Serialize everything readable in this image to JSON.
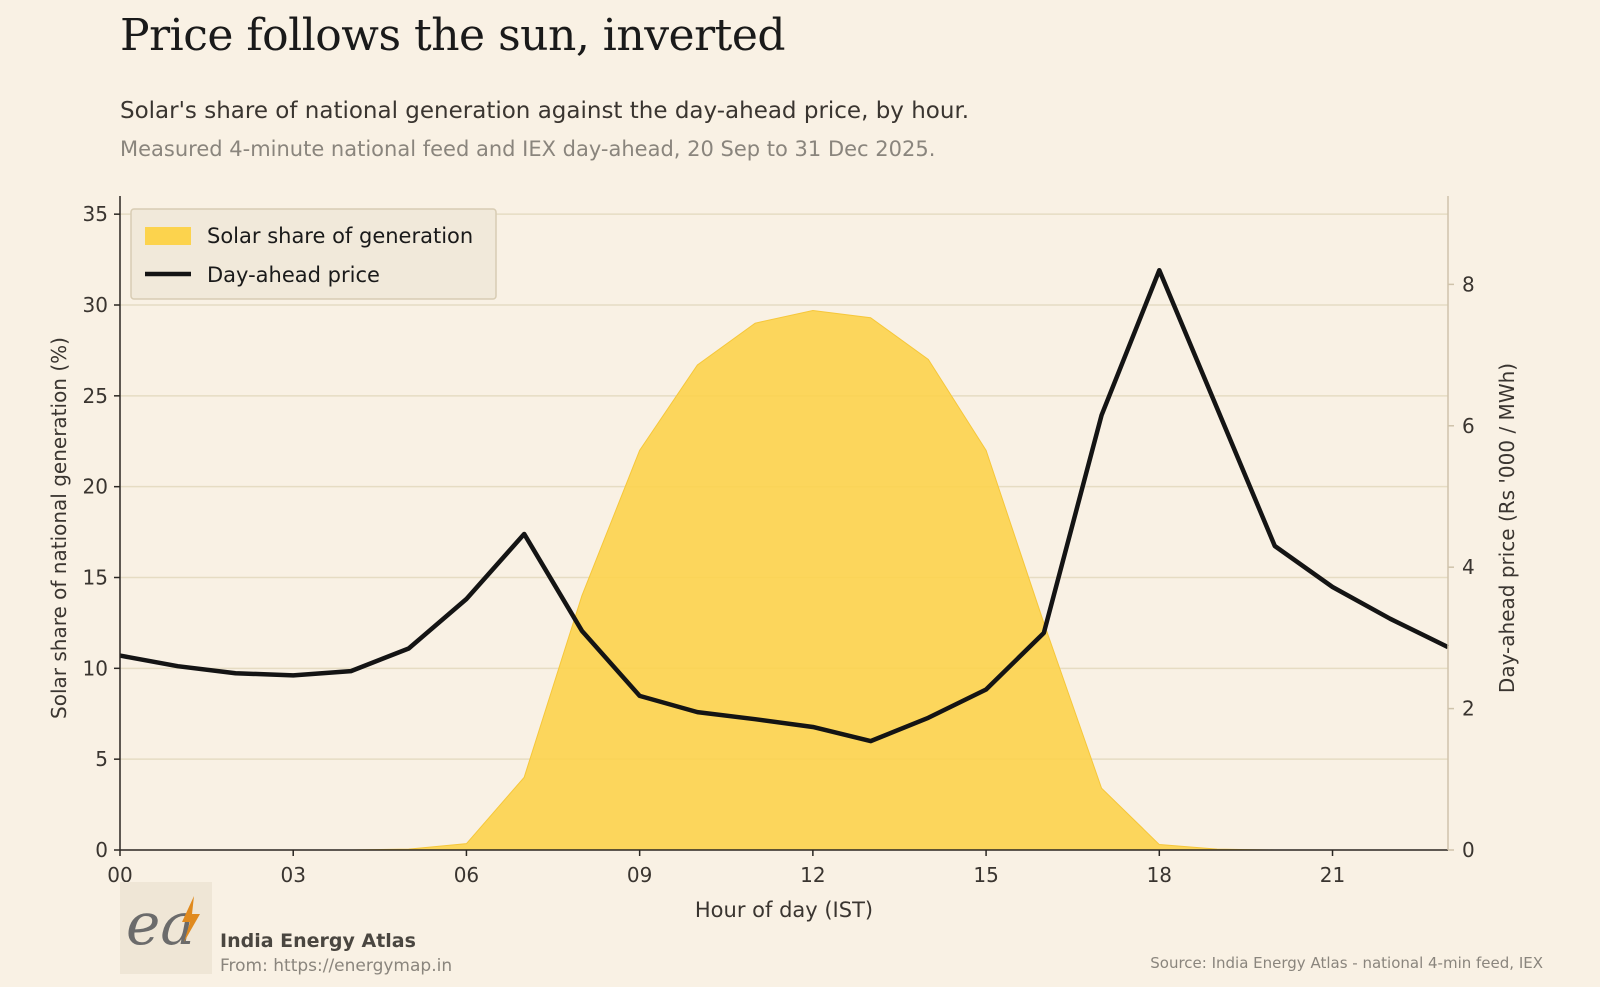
{
  "header": {
    "title": "Price follows the sun, inverted",
    "subtitle": "Solar's share of national generation against the day-ahead price, by hour.",
    "note": "Measured 4-minute national feed and IEX day-ahead, 20 Sep to 31 Dec 2025."
  },
  "footer": {
    "brand_name": "India Energy Atlas",
    "brand_url": "From: https://energymap.in",
    "source": "Source: India Energy Atlas - national 4-min feed, IEX"
  },
  "colors": {
    "solar": "#fcd34d",
    "price": "#141414",
    "grid": "#e6dcc3",
    "axis": "#2a2622",
    "background": "#f9f1e4"
  },
  "chart_data": {
    "type": "area",
    "xlabel": "Hour of day (IST)",
    "ylabel": "Solar share of national generation (%)",
    "y2label": "Day-ahead price (Rs '000 / MWh)",
    "x": [
      0,
      1,
      2,
      3,
      4,
      5,
      6,
      7,
      8,
      9,
      10,
      11,
      12,
      13,
      14,
      15,
      16,
      17,
      18,
      19,
      20,
      21,
      22,
      23
    ],
    "xlim": [
      0,
      23
    ],
    "xticks": [
      0,
      3,
      6,
      9,
      12,
      15,
      18,
      21
    ],
    "xtick_labels": [
      "00",
      "03",
      "06",
      "09",
      "12",
      "15",
      "18",
      "21"
    ],
    "ylim": [
      0,
      36
    ],
    "yticks": [
      0,
      5,
      10,
      15,
      20,
      25,
      30,
      35
    ],
    "y2lim": [
      0,
      9.25
    ],
    "y2ticks": [
      0,
      2,
      4,
      6,
      8
    ],
    "grid": "horizontal",
    "legend": "top-left",
    "series": [
      {
        "name": "Solar share of generation",
        "kind": "area",
        "axis": "left",
        "values": [
          0,
          0,
          0,
          0,
          0,
          0.05,
          0.35,
          4,
          14,
          22,
          26.7,
          29,
          29.7,
          29.3,
          27,
          22,
          12.5,
          3.4,
          0.3,
          0.05,
          0,
          0,
          0,
          0
        ]
      },
      {
        "name": "Day-ahead price",
        "kind": "line",
        "axis": "right",
        "values": [
          2.75,
          2.6,
          2.5,
          2.47,
          2.53,
          2.85,
          3.55,
          4.47,
          3.1,
          2.18,
          1.95,
          1.85,
          1.74,
          1.54,
          1.87,
          2.27,
          3.07,
          6.15,
          8.2,
          6.25,
          4.3,
          3.72,
          3.27,
          2.87
        ]
      }
    ]
  }
}
